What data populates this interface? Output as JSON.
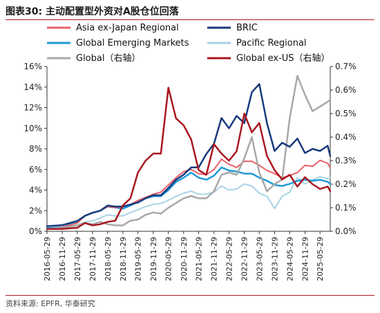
{
  "figure": {
    "title": "图表30:  主动配置型外资对A股仓位回落",
    "source": "资料来源: EPFR, 华泰研究"
  },
  "chart_data": {
    "type": "line",
    "x_tick_labels": [
      "2016-05-29",
      "2016-11-29",
      "2017-05-29",
      "2017-11-29",
      "2018-05-29",
      "2018-11-29",
      "2019-05-29",
      "2019-11-29",
      "2020-05-29",
      "2020-11-29",
      "2021-05-29",
      "2021-11-29",
      "2022-05-29",
      "2022-11-29",
      "2023-05-29",
      "2023-11-29",
      "2024-05-29",
      "2024-11-29",
      "2025-05-29"
    ],
    "x_range": [
      "2016-05-29",
      "2025-09-29"
    ],
    "y_left": {
      "ticks": [
        "0%",
        "2%",
        "4%",
        "6%",
        "8%",
        "10%",
        "12%",
        "14%",
        "16%"
      ],
      "min": 0,
      "max": 16
    },
    "y_right": {
      "ticks": [
        "0.0%",
        "0.1%",
        "0.2%",
        "0.3%",
        "0.4%",
        "0.5%",
        "0.6%",
        "0.7%"
      ],
      "min": 0,
      "max": 0.7
    },
    "grid": false,
    "legend_position": "top",
    "series": [
      {
        "name": "Asia ex-Japan Regional",
        "color": "#e8606a",
        "axis": "left",
        "width": 2,
        "points": [
          [
            "2016-05-29",
            0.2
          ],
          [
            "2016-11-29",
            0.4
          ],
          [
            "2017-05-29",
            0.8
          ],
          [
            "2017-08-29",
            1.5
          ],
          [
            "2017-11-29",
            1.8
          ],
          [
            "2018-02-28",
            2.0
          ],
          [
            "2018-05-29",
            2.4
          ],
          [
            "2018-08-29",
            2.3
          ],
          [
            "2018-11-29",
            2.4
          ],
          [
            "2019-02-28",
            2.6
          ],
          [
            "2019-05-29",
            3.0
          ],
          [
            "2019-08-29",
            3.3
          ],
          [
            "2019-11-29",
            3.6
          ],
          [
            "2020-02-29",
            3.8
          ],
          [
            "2020-05-29",
            4.5
          ],
          [
            "2020-08-29",
            5.2
          ],
          [
            "2020-11-29",
            5.8
          ],
          [
            "2021-02-28",
            6.0
          ],
          [
            "2021-05-29",
            5.6
          ],
          [
            "2021-08-29",
            5.5
          ],
          [
            "2021-11-29",
            6.0
          ],
          [
            "2022-02-28",
            7.0
          ],
          [
            "2022-05-29",
            6.5
          ],
          [
            "2022-08-29",
            6.2
          ],
          [
            "2022-11-29",
            6.8
          ],
          [
            "2023-02-28",
            6.8
          ],
          [
            "2023-05-29",
            6.4
          ],
          [
            "2023-08-29",
            5.9
          ],
          [
            "2023-11-29",
            5.6
          ],
          [
            "2024-02-28",
            5.2
          ],
          [
            "2024-05-29",
            5.4
          ],
          [
            "2024-08-29",
            5.7
          ],
          [
            "2024-11-29",
            6.4
          ],
          [
            "2025-02-28",
            6.3
          ],
          [
            "2025-05-29",
            6.9
          ],
          [
            "2025-08-29",
            6.6
          ],
          [
            "2025-09-29",
            6.2
          ]
        ]
      },
      {
        "name": "BRIC",
        "color": "#173a7c",
        "axis": "left",
        "width": 2.5,
        "points": [
          [
            "2016-05-29",
            0.5
          ],
          [
            "2016-11-29",
            0.6
          ],
          [
            "2017-05-29",
            1.0
          ],
          [
            "2017-08-29",
            1.5
          ],
          [
            "2017-11-29",
            1.8
          ],
          [
            "2018-02-28",
            2.0
          ],
          [
            "2018-05-29",
            2.5
          ],
          [
            "2018-08-29",
            2.4
          ],
          [
            "2018-11-29",
            2.4
          ],
          [
            "2019-02-28",
            2.6
          ],
          [
            "2019-05-29",
            2.8
          ],
          [
            "2019-08-29",
            3.2
          ],
          [
            "2019-11-29",
            3.5
          ],
          [
            "2020-02-29",
            3.5
          ],
          [
            "2020-05-29",
            4.2
          ],
          [
            "2020-08-29",
            5.0
          ],
          [
            "2020-11-29",
            5.5
          ],
          [
            "2021-02-28",
            6.2
          ],
          [
            "2021-05-29",
            6.2
          ],
          [
            "2021-08-29",
            7.5
          ],
          [
            "2021-11-29",
            8.5
          ],
          [
            "2022-02-28",
            11.0
          ],
          [
            "2022-05-29",
            10.0
          ],
          [
            "2022-08-29",
            11.2
          ],
          [
            "2022-11-29",
            10.5
          ],
          [
            "2023-02-28",
            13.5
          ],
          [
            "2023-05-29",
            14.3
          ],
          [
            "2023-08-29",
            10.5
          ],
          [
            "2023-11-29",
            7.8
          ],
          [
            "2024-02-28",
            8.6
          ],
          [
            "2024-05-29",
            8.2
          ],
          [
            "2024-08-29",
            9.0
          ],
          [
            "2024-11-29",
            7.6
          ],
          [
            "2025-02-28",
            8.0
          ],
          [
            "2025-05-29",
            7.8
          ],
          [
            "2025-08-29",
            8.3
          ],
          [
            "2025-09-29",
            7.3
          ]
        ]
      },
      {
        "name": "Global Emerging Markets",
        "color": "#1f9ad6",
        "axis": "left",
        "width": 2.5,
        "points": [
          [
            "2016-05-29",
            0.3
          ],
          [
            "2016-11-29",
            0.4
          ],
          [
            "2017-05-29",
            0.9
          ],
          [
            "2017-08-29",
            1.5
          ],
          [
            "2017-11-29",
            1.8
          ],
          [
            "2018-02-28",
            2.0
          ],
          [
            "2018-05-29",
            2.4
          ],
          [
            "2018-08-29",
            2.3
          ],
          [
            "2018-11-29",
            2.2
          ],
          [
            "2019-02-28",
            2.5
          ],
          [
            "2019-05-29",
            2.9
          ],
          [
            "2019-08-29",
            3.2
          ],
          [
            "2019-11-29",
            3.4
          ],
          [
            "2020-02-29",
            3.4
          ],
          [
            "2020-05-29",
            4.0
          ],
          [
            "2020-08-29",
            4.8
          ],
          [
            "2020-11-29",
            5.2
          ],
          [
            "2021-02-28",
            5.7
          ],
          [
            "2021-05-29",
            5.2
          ],
          [
            "2021-08-29",
            5.0
          ],
          [
            "2021-11-29",
            5.4
          ],
          [
            "2022-02-28",
            6.2
          ],
          [
            "2022-05-29",
            5.9
          ],
          [
            "2022-08-29",
            5.8
          ],
          [
            "2022-11-29",
            5.6
          ],
          [
            "2023-02-28",
            5.6
          ],
          [
            "2023-05-29",
            5.2
          ],
          [
            "2023-08-29",
            4.9
          ],
          [
            "2023-11-29",
            4.5
          ],
          [
            "2024-02-28",
            4.4
          ],
          [
            "2024-05-29",
            4.6
          ],
          [
            "2024-08-29",
            4.9
          ],
          [
            "2024-11-29",
            5.0
          ],
          [
            "2025-02-28",
            4.9
          ],
          [
            "2025-05-29",
            5.0
          ],
          [
            "2025-08-29",
            4.8
          ],
          [
            "2025-09-29",
            4.6
          ]
        ]
      },
      {
        "name": "Pacific Regional",
        "color": "#a9d3e6",
        "axis": "left",
        "width": 2,
        "points": [
          [
            "2016-05-29",
            0.2
          ],
          [
            "2016-11-29",
            0.3
          ],
          [
            "2017-05-29",
            0.6
          ],
          [
            "2017-08-29",
            0.9
          ],
          [
            "2017-11-29",
            1.0
          ],
          [
            "2018-02-28",
            1.3
          ],
          [
            "2018-05-29",
            1.6
          ],
          [
            "2018-08-29",
            1.5
          ],
          [
            "2018-11-29",
            1.5
          ],
          [
            "2019-02-28",
            1.8
          ],
          [
            "2019-05-29",
            2.1
          ],
          [
            "2019-08-29",
            2.4
          ],
          [
            "2019-11-29",
            2.6
          ],
          [
            "2020-02-29",
            2.7
          ],
          [
            "2020-05-29",
            3.0
          ],
          [
            "2020-08-29",
            3.4
          ],
          [
            "2020-11-29",
            3.7
          ],
          [
            "2021-02-28",
            3.9
          ],
          [
            "2021-05-29",
            3.6
          ],
          [
            "2021-08-29",
            3.6
          ],
          [
            "2021-11-29",
            3.8
          ],
          [
            "2022-02-28",
            4.4
          ],
          [
            "2022-05-29",
            4.0
          ],
          [
            "2022-08-29",
            4.1
          ],
          [
            "2022-11-29",
            4.6
          ],
          [
            "2023-02-28",
            4.4
          ],
          [
            "2023-05-29",
            3.7
          ],
          [
            "2023-08-29",
            3.4
          ],
          [
            "2023-11-29",
            2.2
          ],
          [
            "2024-02-28",
            3.4
          ],
          [
            "2024-05-29",
            3.8
          ],
          [
            "2024-08-29",
            5.2
          ],
          [
            "2024-11-29",
            4.6
          ],
          [
            "2025-02-28",
            5.0
          ],
          [
            "2025-05-29",
            5.3
          ],
          [
            "2025-08-29",
            5.1
          ],
          [
            "2025-09-29",
            5.2
          ]
        ]
      },
      {
        "name": "Global（右轴）",
        "color": "#a8a8a8",
        "axis": "right",
        "width": 2.5,
        "points": [
          [
            "2016-05-29",
            0.01
          ],
          [
            "2016-11-29",
            0.015
          ],
          [
            "2017-05-29",
            0.025
          ],
          [
            "2017-08-29",
            0.035
          ],
          [
            "2017-11-29",
            0.03
          ],
          [
            "2018-02-28",
            0.04
          ],
          [
            "2018-05-29",
            0.03
          ],
          [
            "2018-08-29",
            0.025
          ],
          [
            "2018-11-29",
            0.025
          ],
          [
            "2019-02-28",
            0.045
          ],
          [
            "2019-05-29",
            0.05
          ],
          [
            "2019-08-29",
            0.07
          ],
          [
            "2019-11-29",
            0.08
          ],
          [
            "2020-02-29",
            0.075
          ],
          [
            "2020-05-29",
            0.1
          ],
          [
            "2020-08-29",
            0.12
          ],
          [
            "2020-11-29",
            0.14
          ],
          [
            "2021-02-28",
            0.15
          ],
          [
            "2021-05-29",
            0.14
          ],
          [
            "2021-08-29",
            0.14
          ],
          [
            "2021-11-29",
            0.17
          ],
          [
            "2022-02-28",
            0.24
          ],
          [
            "2022-05-29",
            0.25
          ],
          [
            "2022-08-29",
            0.24
          ],
          [
            "2022-11-29",
            0.31
          ],
          [
            "2023-02-28",
            0.4
          ],
          [
            "2023-05-29",
            0.25
          ],
          [
            "2023-08-29",
            0.17
          ],
          [
            "2023-11-29",
            0.2
          ],
          [
            "2024-02-28",
            0.22
          ],
          [
            "2024-05-29",
            0.48
          ],
          [
            "2024-08-29",
            0.66
          ],
          [
            "2024-11-29",
            0.58
          ],
          [
            "2025-02-28",
            0.51
          ],
          [
            "2025-05-29",
            0.53
          ],
          [
            "2025-08-29",
            0.55
          ],
          [
            "2025-09-29",
            0.56
          ]
        ]
      },
      {
        "name": "Global ex-US（右轴）",
        "color": "#a8171f",
        "axis": "right",
        "width": 2.5,
        "points": [
          [
            "2016-05-29",
            0.01
          ],
          [
            "2016-11-29",
            0.01
          ],
          [
            "2017-05-29",
            0.015
          ],
          [
            "2017-08-29",
            0.035
          ],
          [
            "2017-11-29",
            0.025
          ],
          [
            "2018-02-28",
            0.03
          ],
          [
            "2018-05-29",
            0.04
          ],
          [
            "2018-08-29",
            0.045
          ],
          [
            "2018-11-29",
            0.11
          ],
          [
            "2019-02-28",
            0.14
          ],
          [
            "2019-05-29",
            0.25
          ],
          [
            "2019-08-29",
            0.3
          ],
          [
            "2019-11-29",
            0.33
          ],
          [
            "2020-02-29",
            0.33
          ],
          [
            "2020-05-29",
            0.61
          ],
          [
            "2020-08-29",
            0.48
          ],
          [
            "2020-11-29",
            0.45
          ],
          [
            "2021-02-28",
            0.39
          ],
          [
            "2021-05-29",
            0.26
          ],
          [
            "2021-08-29",
            0.24
          ],
          [
            "2021-11-29",
            0.37
          ],
          [
            "2022-02-28",
            0.33
          ],
          [
            "2022-05-29",
            0.3
          ],
          [
            "2022-08-29",
            0.34
          ],
          [
            "2022-11-29",
            0.5
          ],
          [
            "2023-02-28",
            0.42
          ],
          [
            "2023-05-29",
            0.46
          ],
          [
            "2023-08-29",
            0.32
          ],
          [
            "2023-11-29",
            0.26
          ],
          [
            "2024-02-28",
            0.22
          ],
          [
            "2024-05-29",
            0.24
          ],
          [
            "2024-08-29",
            0.19
          ],
          [
            "2024-11-29",
            0.23
          ],
          [
            "2025-02-28",
            0.2
          ],
          [
            "2025-05-29",
            0.18
          ],
          [
            "2025-08-29",
            0.19
          ],
          [
            "2025-09-29",
            0.17
          ]
        ]
      }
    ]
  }
}
